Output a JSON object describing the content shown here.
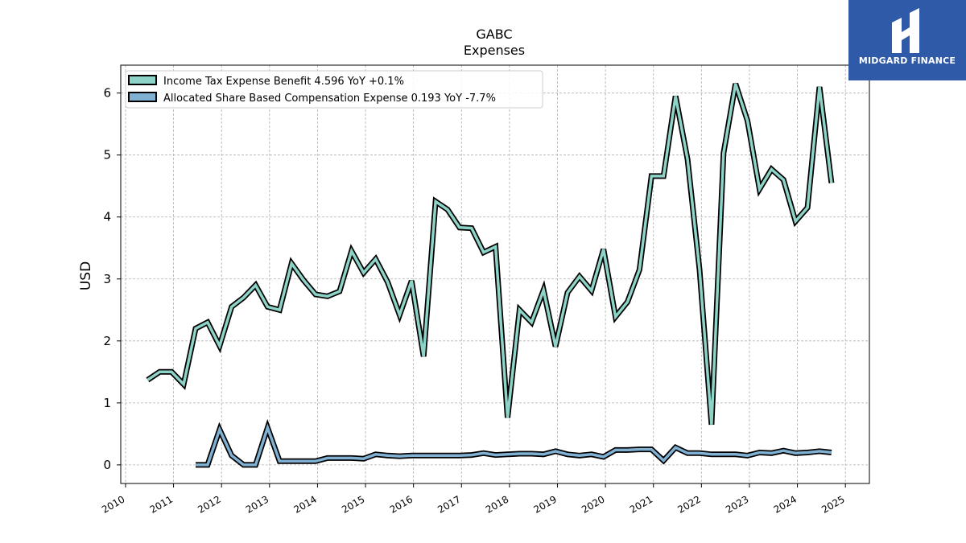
{
  "logo": {
    "text": "MIDGARD FINANCE",
    "bg_color": "#2f5aa8"
  },
  "chart_data": {
    "type": "line",
    "title": "GABC",
    "subtitle": "Expenses",
    "xlabel": "",
    "ylabel": "USD",
    "xlim": [
      2009.9,
      2025.5
    ],
    "ylim": [
      -0.3,
      6.45
    ],
    "x_ticks": [
      "2010",
      "2011",
      "2012",
      "2013",
      "2014",
      "2015",
      "2016",
      "2017",
      "2018",
      "2019",
      "2020",
      "2021",
      "2022",
      "2023",
      "2024",
      "2025"
    ],
    "y_ticks": [
      "0",
      "1",
      "2",
      "3",
      "4",
      "5",
      "6"
    ],
    "grid": true,
    "legend_position": "top-left",
    "series": [
      {
        "name": "Income Tax Expense Benefit  4.596 YoY +0.1%",
        "color": "#8dd3c7",
        "x": [
          2010.46,
          2010.71,
          2010.96,
          2011.21,
          2011.46,
          2011.71,
          2011.96,
          2012.21,
          2012.46,
          2012.71,
          2012.96,
          2013.21,
          2013.46,
          2013.71,
          2013.96,
          2014.21,
          2014.46,
          2014.71,
          2014.96,
          2015.21,
          2015.46,
          2015.71,
          2015.96,
          2016.21,
          2016.46,
          2016.71,
          2016.96,
          2017.21,
          2017.46,
          2017.71,
          2017.96,
          2018.21,
          2018.46,
          2018.71,
          2018.96,
          2019.21,
          2019.46,
          2019.71,
          2019.96,
          2020.21,
          2020.46,
          2020.71,
          2020.96,
          2021.21,
          2021.46,
          2021.71,
          2021.96,
          2022.21,
          2022.46,
          2022.71,
          2022.96,
          2023.21,
          2023.46,
          2023.71,
          2023.96,
          2024.21,
          2024.46,
          2024.71
        ],
        "values": [
          1.37,
          1.5,
          1.5,
          1.3,
          2.2,
          2.3,
          1.92,
          2.55,
          2.7,
          2.9,
          2.55,
          2.5,
          3.25,
          2.98,
          2.75,
          2.72,
          2.8,
          3.45,
          3.1,
          3.32,
          2.95,
          2.42,
          2.97,
          1.75,
          4.25,
          4.12,
          3.83,
          3.82,
          3.43,
          3.52,
          0.76,
          2.5,
          2.3,
          2.82,
          1.91,
          2.78,
          3.04,
          2.81,
          3.48,
          2.39,
          2.63,
          3.15,
          4.66,
          4.66,
          5.95,
          4.93,
          3.15,
          0.65,
          5.03,
          6.15,
          5.55,
          4.45,
          4.77,
          4.6,
          3.93,
          4.15,
          6.1,
          4.55
        ]
      },
      {
        "name": "Allocated Share Based Compensation Expense  0.193 YoY -7.7%",
        "color": "#80b1d3",
        "x": [
          2011.46,
          2011.71,
          2011.96,
          2012.21,
          2012.46,
          2012.71,
          2012.96,
          2013.21,
          2013.46,
          2013.71,
          2013.96,
          2014.21,
          2014.46,
          2014.71,
          2014.96,
          2015.21,
          2015.46,
          2015.71,
          2015.96,
          2016.21,
          2016.46,
          2016.71,
          2016.96,
          2017.21,
          2017.46,
          2017.71,
          2017.96,
          2018.21,
          2018.46,
          2018.71,
          2018.96,
          2019.21,
          2019.46,
          2019.71,
          2019.96,
          2020.21,
          2020.46,
          2020.71,
          2020.96,
          2021.21,
          2021.46,
          2021.71,
          2021.96,
          2022.21,
          2022.46,
          2022.71,
          2022.96,
          2023.21,
          2023.46,
          2023.71,
          2023.96,
          2024.21,
          2024.46,
          2024.71
        ],
        "values": [
          0.0,
          0.0,
          0.57,
          0.15,
          0.0,
          0.0,
          0.6,
          0.06,
          0.06,
          0.06,
          0.06,
          0.11,
          0.11,
          0.11,
          0.1,
          0.17,
          0.15,
          0.14,
          0.15,
          0.15,
          0.15,
          0.15,
          0.15,
          0.16,
          0.19,
          0.16,
          0.17,
          0.18,
          0.18,
          0.17,
          0.22,
          0.17,
          0.15,
          0.17,
          0.13,
          0.24,
          0.24,
          0.25,
          0.25,
          0.07,
          0.28,
          0.19,
          0.19,
          0.17,
          0.17,
          0.17,
          0.15,
          0.2,
          0.19,
          0.23,
          0.19,
          0.2,
          0.22,
          0.2
        ]
      }
    ]
  }
}
